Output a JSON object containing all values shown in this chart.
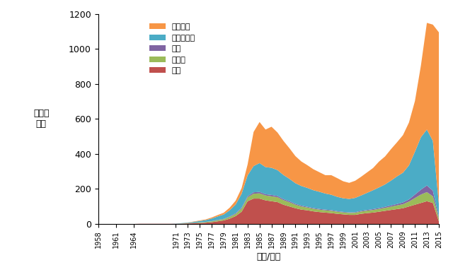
{
  "years": [
    1958,
    1959,
    1960,
    1961,
    1962,
    1963,
    1964,
    1965,
    1966,
    1967,
    1968,
    1969,
    1970,
    1971,
    1972,
    1973,
    1974,
    1975,
    1976,
    1977,
    1978,
    1979,
    1980,
    1981,
    1982,
    1983,
    1984,
    1985,
    1986,
    1987,
    1988,
    1989,
    1990,
    1991,
    1992,
    1993,
    1994,
    1995,
    1996,
    1997,
    1998,
    1999,
    2000,
    2001,
    2002,
    2003,
    2004,
    2005,
    2006,
    2007,
    2008,
    2009,
    2010,
    2011,
    2012,
    2013,
    2014,
    2015
  ],
  "关节": [
    0,
    0,
    0,
    0,
    0,
    0,
    0,
    1,
    1,
    1,
    1,
    1,
    1,
    1,
    2,
    3,
    4,
    5,
    7,
    10,
    15,
    20,
    30,
    45,
    70,
    130,
    145,
    145,
    135,
    130,
    125,
    110,
    100,
    90,
    82,
    78,
    72,
    68,
    65,
    62,
    58,
    55,
    52,
    52,
    58,
    62,
    65,
    70,
    75,
    80,
    85,
    90,
    100,
    110,
    120,
    130,
    120,
    15
  ],
  "机械臂": [
    0,
    0,
    0,
    0,
    0,
    0,
    0,
    0,
    0,
    0,
    0,
    0,
    0,
    0,
    1,
    1,
    2,
    3,
    4,
    5,
    6,
    7,
    10,
    12,
    18,
    22,
    28,
    30,
    28,
    28,
    28,
    26,
    24,
    20,
    18,
    16,
    15,
    14,
    13,
    13,
    12,
    11,
    11,
    12,
    13,
    14,
    15,
    16,
    17,
    19,
    21,
    23,
    28,
    38,
    48,
    52,
    38,
    18
  ],
  "基座": [
    0,
    0,
    0,
    0,
    0,
    0,
    0,
    0,
    0,
    0,
    0,
    0,
    0,
    0,
    0,
    0,
    1,
    1,
    1,
    1,
    2,
    2,
    3,
    4,
    5,
    6,
    8,
    8,
    7,
    8,
    7,
    6,
    6,
    5,
    5,
    4,
    4,
    4,
    4,
    4,
    3,
    3,
    3,
    3,
    4,
    4,
    5,
    5,
    6,
    7,
    8,
    10,
    12,
    20,
    28,
    38,
    32,
    8
  ],
  "末端执行器": [
    0,
    0,
    0,
    0,
    0,
    0,
    0,
    0,
    0,
    0,
    0,
    0,
    0,
    1,
    2,
    3,
    5,
    8,
    10,
    15,
    20,
    25,
    35,
    50,
    80,
    120,
    150,
    165,
    155,
    155,
    148,
    138,
    128,
    118,
    112,
    108,
    102,
    98,
    92,
    88,
    82,
    78,
    77,
    82,
    88,
    98,
    108,
    118,
    128,
    142,
    158,
    170,
    195,
    245,
    300,
    320,
    285,
    75
  ],
  "辅助部件": [
    0,
    0,
    0,
    0,
    0,
    0,
    0,
    0,
    0,
    0,
    0,
    0,
    0,
    0,
    0,
    1,
    2,
    3,
    4,
    6,
    8,
    10,
    15,
    22,
    32,
    62,
    195,
    235,
    215,
    235,
    215,
    195,
    175,
    155,
    140,
    130,
    120,
    112,
    105,
    112,
    107,
    97,
    92,
    98,
    107,
    117,
    127,
    148,
    160,
    180,
    195,
    215,
    245,
    290,
    410,
    610,
    665,
    980
  ],
  "colors": [
    "#c0504d",
    "#9bbb59",
    "#8064a2",
    "#4bacc6",
    "#f79646"
  ],
  "labels": [
    "关节",
    "机械臂",
    "基座",
    "末端执行器",
    "辅助部件"
  ],
  "ylabel": "申请量\n／项",
  "xlabel": "时间/年份",
  "ylim": [
    0,
    1200
  ],
  "yticks": [
    0,
    200,
    400,
    600,
    800,
    1000,
    1200
  ],
  "xticks": [
    1958,
    1961,
    1964,
    1971,
    1973,
    1975,
    1977,
    1979,
    1981,
    1983,
    1985,
    1987,
    1989,
    1991,
    1993,
    1995,
    1997,
    1999,
    2001,
    2003,
    2005,
    2007,
    2009,
    2011,
    2013,
    2015
  ],
  "background": "#ffffff"
}
